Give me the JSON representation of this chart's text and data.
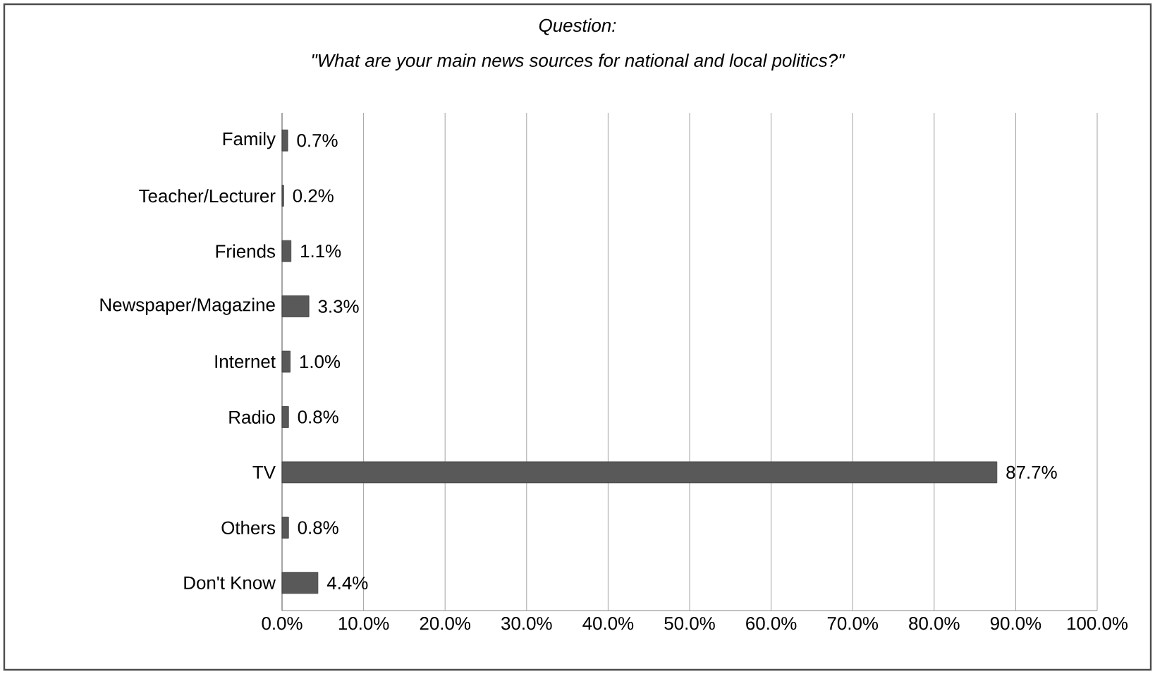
{
  "chart_data": {
    "type": "bar",
    "orientation": "horizontal",
    "title": "*Question*:",
    "subtitle": "\"What are your main news sources for national and local politics?\"",
    "categories": [
      "Family",
      "Teacher/Lecturer",
      "Friends",
      "Newspaper/Magazine",
      "Internet",
      "Radio",
      "TV",
      "Others",
      "Don't Know"
    ],
    "values": [
      0.7,
      0.2,
      1.1,
      3.3,
      1.0,
      0.8,
      87.7,
      0.8,
      4.4
    ],
    "value_labels": [
      "0.7%",
      "0.2%",
      "1.1%",
      "3.3%",
      "1.0%",
      "0.8%",
      "87.7%",
      "0.8%",
      "4.4%"
    ],
    "color": "#595959",
    "xlim": [
      0,
      100
    ],
    "xticks": [
      {
        "value": 0,
        "label": "0.0%"
      },
      {
        "value": 10,
        "label": "10.0%"
      },
      {
        "value": 20,
        "label": "20.0%"
      },
      {
        "value": 30,
        "label": "30.0%"
      },
      {
        "value": 40,
        "label": "40.0%"
      },
      {
        "value": 50,
        "label": "50.0%"
      },
      {
        "value": 60,
        "label": "60.0%"
      },
      {
        "value": 70,
        "label": "70.0%"
      },
      {
        "value": 80,
        "label": "80.0%"
      },
      {
        "value": 90,
        "label": "90.0%"
      },
      {
        "value": 100,
        "label": "100.0%"
      }
    ],
    "grid": "x"
  }
}
